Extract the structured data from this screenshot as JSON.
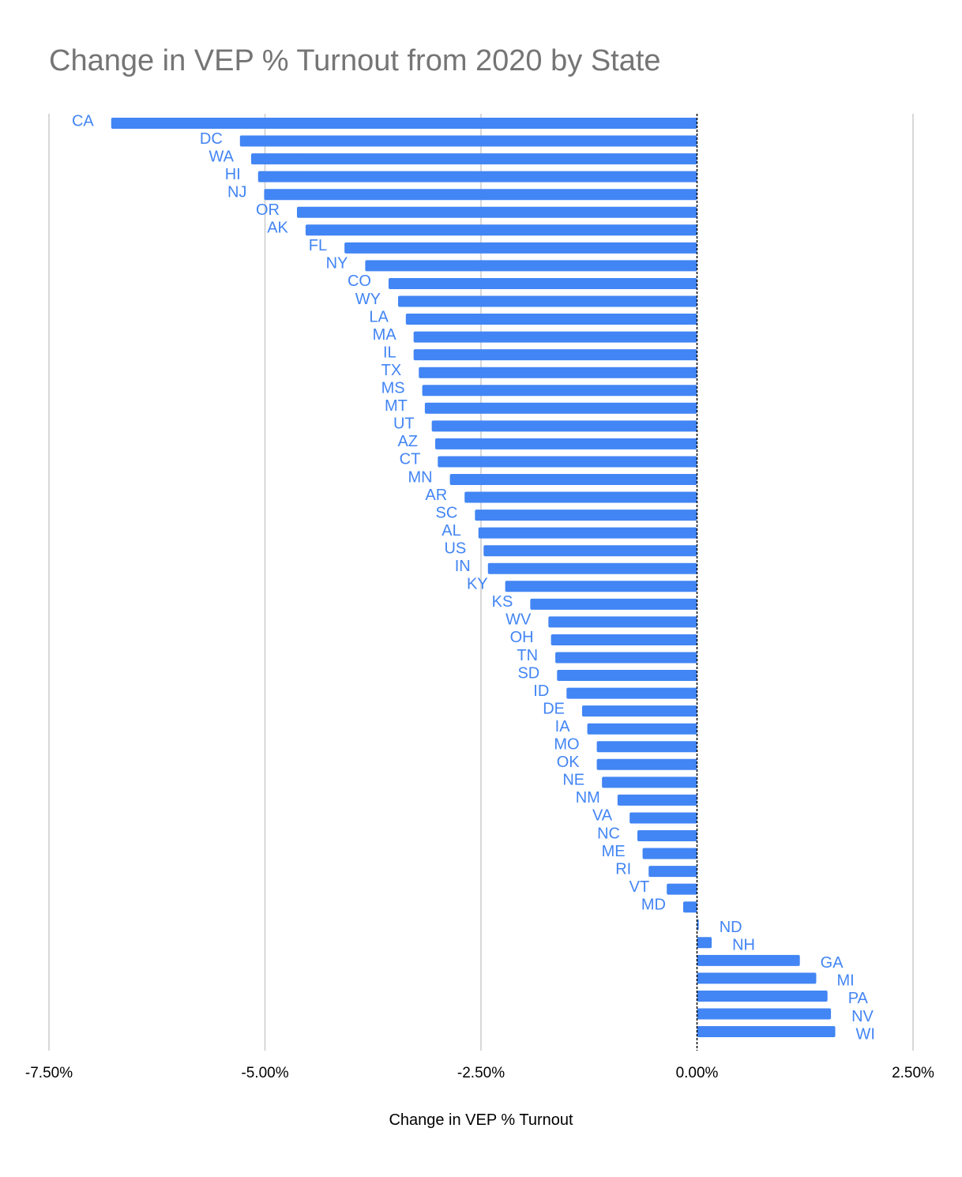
{
  "chart_data": {
    "type": "bar",
    "orientation": "horizontal",
    "title": "Change in VEP % Turnout from 2020 by State",
    "xlabel": "Change in VEP % Turnout",
    "ylabel": "",
    "xlim": [
      -7.5,
      2.5
    ],
    "xticks": [
      -7.5,
      -5.0,
      -2.5,
      0.0,
      2.5
    ],
    "xtick_labels": [
      "-7.50%",
      "-5.00%",
      "-2.50%",
      "0.00%",
      "2.50%"
    ],
    "grid": true,
    "legend": "none",
    "bar_color": "#4285f4",
    "label_color": "#4285f4",
    "categories": [
      "CA",
      "DC",
      "WA",
      "HI",
      "NJ",
      "OR",
      "AK",
      "FL",
      "NY",
      "CO",
      "WY",
      "LA",
      "MA",
      "IL",
      "TX",
      "MS",
      "MT",
      "UT",
      "AZ",
      "CT",
      "MN",
      "AR",
      "SC",
      "AL",
      "US",
      "IN",
      "KY",
      "KS",
      "WV",
      "OH",
      "TN",
      "SD",
      "ID",
      "DE",
      "IA",
      "MO",
      "OK",
      "NE",
      "NM",
      "VA",
      "NC",
      "ME",
      "RI",
      "VT",
      "MD",
      "ND",
      "NH",
      "GA",
      "MI",
      "PA",
      "NV",
      "WI"
    ],
    "values": [
      -6.78,
      -5.29,
      -5.16,
      -5.08,
      -5.01,
      -4.63,
      -4.53,
      -4.08,
      -3.84,
      -3.57,
      -3.46,
      -3.37,
      -3.28,
      -3.28,
      -3.22,
      -3.18,
      -3.15,
      -3.07,
      -3.03,
      -3.0,
      -2.86,
      -2.69,
      -2.57,
      -2.53,
      -2.47,
      -2.42,
      -2.22,
      -1.93,
      -1.72,
      -1.69,
      -1.64,
      -1.62,
      -1.51,
      -1.33,
      -1.27,
      -1.16,
      -1.16,
      -1.1,
      -0.92,
      -0.78,
      -0.69,
      -0.63,
      -0.56,
      -0.35,
      -0.16,
      0.02,
      0.17,
      1.19,
      1.38,
      1.51,
      1.55,
      1.6
    ]
  }
}
